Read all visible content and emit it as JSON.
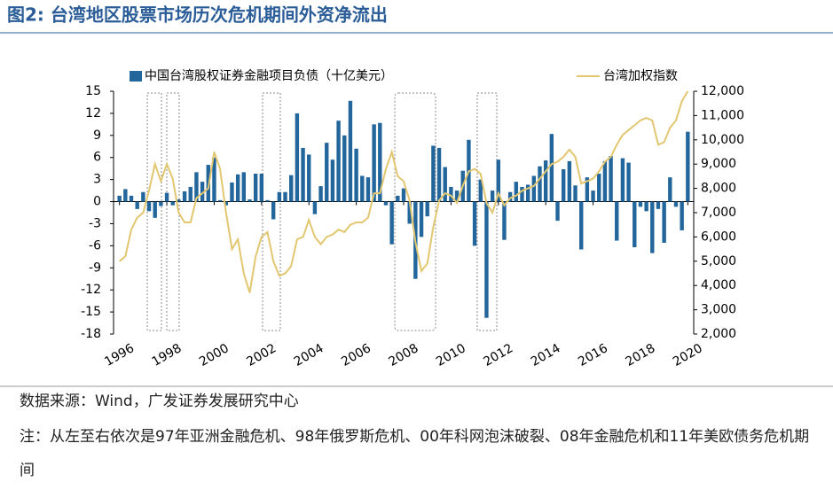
{
  "chart_data": {
    "type": "bar_line",
    "title": "图2:  台湾地区股票市场历次危机期间外资净流出",
    "x": [
      1996,
      1996.25,
      1996.5,
      1996.75,
      1997,
      1997.25,
      1997.5,
      1997.75,
      1998,
      1998.25,
      1998.5,
      1998.75,
      1999,
      1999.25,
      1999.5,
      1999.75,
      2000,
      2000.25,
      2000.5,
      2000.75,
      2001,
      2001.25,
      2001.5,
      2001.75,
      2002,
      2002.25,
      2002.5,
      2002.75,
      2003,
      2003.25,
      2003.5,
      2003.75,
      2004,
      2004.25,
      2004.5,
      2004.75,
      2005,
      2005.25,
      2005.5,
      2005.75,
      2006,
      2006.25,
      2006.5,
      2006.75,
      2007,
      2007.25,
      2007.5,
      2007.75,
      2008,
      2008.25,
      2008.5,
      2008.75,
      2009,
      2009.25,
      2009.5,
      2009.75,
      2010,
      2010.25,
      2010.5,
      2010.75,
      2011,
      2011.25,
      2011.5,
      2011.75,
      2012,
      2012.25,
      2012.5,
      2012.75,
      2013,
      2013.25,
      2013.5,
      2013.75,
      2014,
      2014.25,
      2014.5,
      2014.75,
      2015,
      2015.25,
      2015.5,
      2015.75,
      2016,
      2016.25,
      2016.5,
      2016.75,
      2017,
      2017.25,
      2017.5,
      2017.75,
      2018,
      2018.25,
      2018.5,
      2018.75,
      2019,
      2019.25,
      2019.5,
      2019.75,
      2020
    ],
    "series": [
      {
        "name": "中国台湾股权证券金融项目负债（十亿美元）",
        "type": "bar",
        "color": "#22669c",
        "values": [
          0.8,
          1.7,
          0.8,
          -1.0,
          1.3,
          -1.3,
          -2.2,
          -0.6,
          1.2,
          -0.5,
          0.3,
          1.4,
          2.0,
          4.0,
          2.7,
          5.0,
          6.0,
          0.2,
          -0.5,
          2.6,
          3.7,
          4.0,
          0.3,
          3.8,
          3.8,
          0.2,
          -2.4,
          1.3,
          1.3,
          3.6,
          12.0,
          7.3,
          6.4,
          -1.7,
          2.1,
          8.0,
          5.7,
          11.0,
          9.0,
          13.7,
          7.2,
          3.5,
          3.3,
          10.5,
          10.7,
          -0.5,
          -5.8,
          0.8,
          1.8,
          -3.0,
          -10.5,
          -4.8,
          -2.0,
          7.6,
          7.3,
          4.7,
          2.0,
          1.5,
          4.2,
          8.4,
          -6.0,
          3.0,
          -15.8,
          1.5,
          5.7,
          -5.2,
          1.3,
          2.7,
          2.0,
          2.3,
          3.5,
          4.8,
          5.6,
          9.2,
          -2.6,
          4.4,
          5.5,
          2.2,
          -6.5,
          3.3,
          1.5,
          3.8,
          5.5,
          6.2,
          -5.3,
          5.9,
          5.3,
          -6.2,
          -0.7,
          -1.3,
          -7.0,
          -1.0,
          -5.6,
          3.3,
          -0.7,
          -3.9,
          9.5
        ]
      },
      {
        "name": "台湾加权指数",
        "type": "line",
        "axis": "y2",
        "color": "#e2c670",
        "values": [
          5000,
          5200,
          6300,
          6800,
          7000,
          7900,
          9000,
          8300,
          9000,
          8400,
          7000,
          6600,
          6600,
          7600,
          7800,
          8000,
          9500,
          8800,
          7000,
          5500,
          5900,
          4500,
          3700,
          5200,
          6000,
          6200,
          5000,
          4400,
          4500,
          4800,
          5900,
          6000,
          6700,
          6000,
          5700,
          6000,
          6100,
          6300,
          6200,
          6500,
          6600,
          6600,
          6800,
          7800,
          7800,
          8800,
          9500,
          8500,
          8300,
          7500,
          5800,
          4600,
          4900,
          6400,
          7500,
          7800,
          7700,
          7400,
          8100,
          8700,
          8800,
          8600,
          7400,
          7000,
          7800,
          7300,
          7600,
          7700,
          7900,
          8000,
          8100,
          8400,
          8700,
          9000,
          9100,
          9300,
          9600,
          9300,
          8200,
          8300,
          8400,
          8700,
          9100,
          9300,
          9800,
          10200,
          10400,
          10600,
          10800,
          10900,
          10800,
          9800,
          9900,
          10500,
          10800,
          11600,
          12000
        ]
      }
    ],
    "xlim": [
      1995.75,
      2020.25
    ],
    "xticks": [
      1996,
      1998,
      2000,
      2002,
      2004,
      2006,
      2008,
      2010,
      2012,
      2014,
      2016,
      2018,
      2020
    ],
    "ylim": [
      -18,
      15
    ],
    "yticks": [
      15,
      12,
      9,
      6,
      3,
      0,
      -3,
      -6,
      -9,
      -12,
      -15,
      -18
    ],
    "y2lim": [
      2000,
      12000
    ],
    "y2ticks": [
      {
        "value": 12000,
        "label": "12,000"
      },
      {
        "value": 11000,
        "label": "11,000"
      },
      {
        "value": 10000,
        "label": "10,000"
      },
      {
        "value": 9000,
        "label": "9,000"
      },
      {
        "value": 8000,
        "label": "8,000"
      },
      {
        "value": 7000,
        "label": "7,000"
      },
      {
        "value": 6000,
        "label": "6,000"
      },
      {
        "value": 5000,
        "label": "5,000"
      },
      {
        "value": 4000,
        "label": "4,000"
      },
      {
        "value": 3000,
        "label": "3,000"
      },
      {
        "value": 2000,
        "label": "2,000"
      }
    ],
    "source": "数据来源：Wind，广发证券发展研究中心",
    "note": "注：从左至右依次是97年亚洲金融危机、98年俄罗斯危机、00年科网泡沫破裂、08年金融危机和11年美欧债务危机期间"
  }
}
